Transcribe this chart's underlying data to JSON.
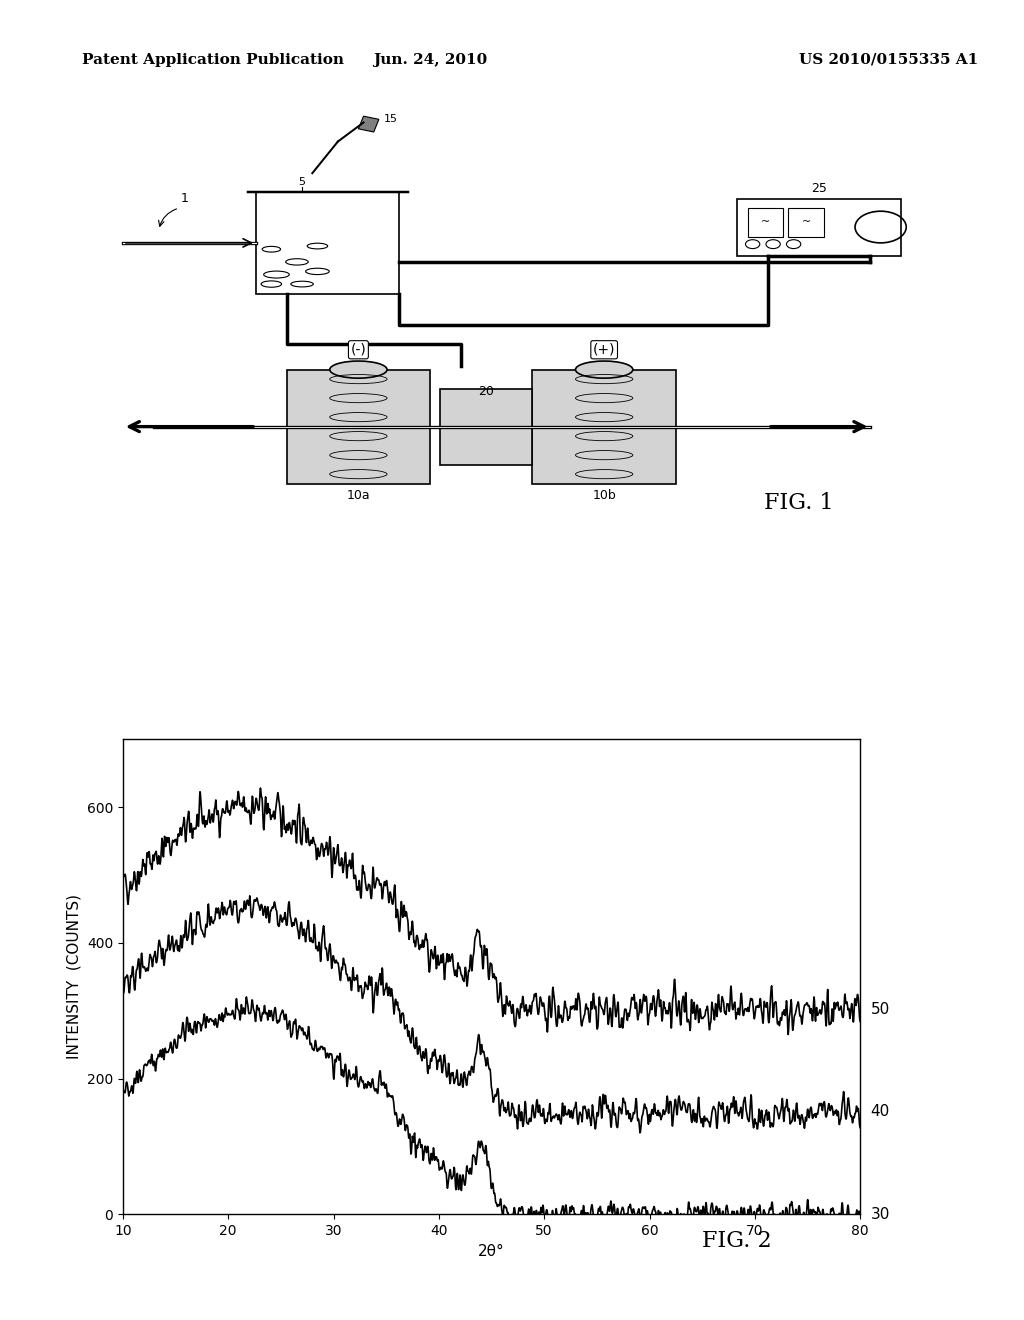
{
  "background_color": "#ffffff",
  "header_left": "Patent Application Publication",
  "header_center": "Jun. 24, 2010",
  "header_right": "US 2010/0155335 A1",
  "header_fontsize": 11,
  "fig1_label": "FIG. 1",
  "fig2_label": "FIG. 2",
  "plot_title": "",
  "xlabel": "2θ°",
  "ylabel": "INTENSITY  (COUNTS)",
  "xlim": [
    10,
    80
  ],
  "ylim": [
    0,
    700
  ],
  "xticks": [
    10,
    20,
    30,
    40,
    50,
    60,
    70,
    80
  ],
  "yticks": [
    0,
    200,
    400,
    600
  ],
  "curve_labels": [
    "50",
    "40",
    "30"
  ],
  "curve_offsets": [
    300,
    150,
    0
  ],
  "noise_amplitude": [
    30,
    25,
    20
  ],
  "label_fontsize": 11,
  "tick_fontsize": 10,
  "curve_color": "#000000",
  "line_width": 1.2
}
